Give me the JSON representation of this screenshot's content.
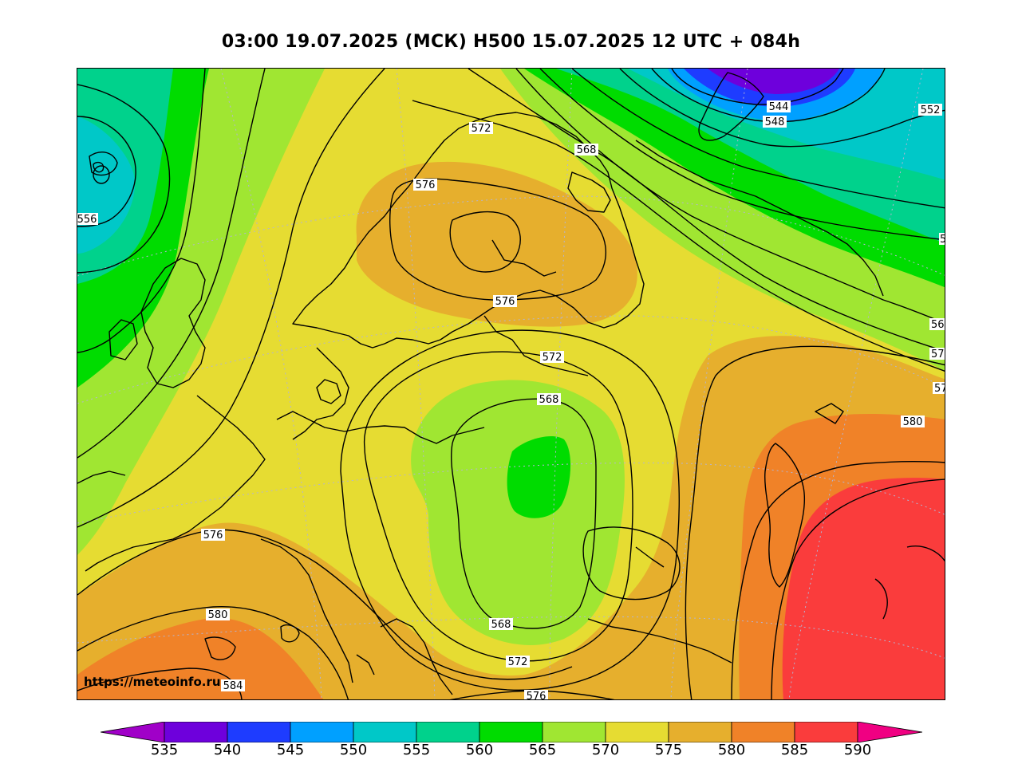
{
  "title": "03:00 19.07.2025 (МСК) H500  15.07.2025 12 UTC + 084h",
  "watermark": "https://meteoinfo.ru",
  "colors": {
    "c535": "#a000c8",
    "c540": "#6e00dc",
    "c545": "#1e3cff",
    "c550": "#00a0ff",
    "c555": "#00c8c8",
    "c560": "#00d28c",
    "c565": "#00dc00",
    "c570": "#a0e632",
    "c575": "#e6dc32",
    "c580": "#e6af2d",
    "c585": "#f08228",
    "c590": "#fa3c3c",
    "c595": "#f00082"
  },
  "colorbar": {
    "ticks": [
      "535",
      "540",
      "545",
      "550",
      "555",
      "560",
      "565",
      "570",
      "575",
      "580",
      "585",
      "590"
    ]
  },
  "contour_labels": {
    "l1": "544",
    "l2": "548",
    "l3": "552",
    "l4": "556",
    "l5": "572",
    "l6": "568",
    "l7": "576",
    "l8": "576",
    "l9": "5",
    "l10": "56",
    "l11": "57",
    "l12": "57",
    "l13": "572",
    "l14": "568",
    "l15": "580",
    "l16": "576",
    "l17": "580",
    "l18": "568",
    "l19": "572",
    "l20": "584",
    "l21": "576"
  }
}
